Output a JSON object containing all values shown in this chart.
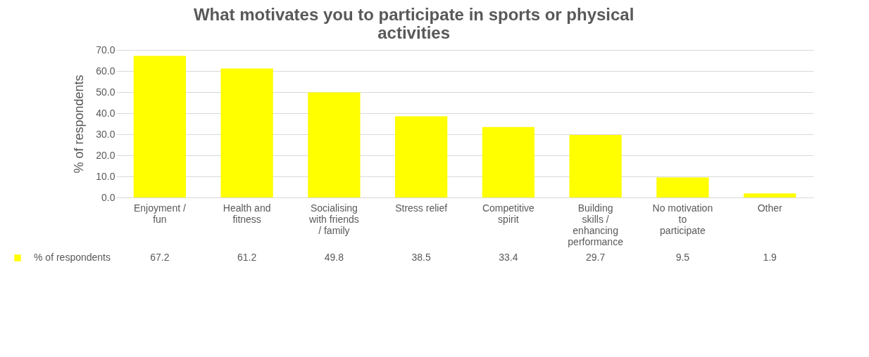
{
  "chart_data": {
    "type": "bar",
    "title": "What motivates you to participate in sports or physical activities",
    "ylabel": "% of respondents",
    "categories": [
      "Enjoyment / fun",
      "Health and fitness",
      "Socialising with friends / family",
      "Stress relief",
      "Competitive spirit",
      "Building skills / enhancing performance",
      "No motivation to participate",
      "Other"
    ],
    "series": [
      {
        "name": "% of respondents",
        "color": "#ffff00",
        "values": [
          67.2,
          61.2,
          49.8,
          38.5,
          33.4,
          29.7,
          9.5,
          1.9
        ]
      }
    ],
    "ylim": [
      0,
      70
    ],
    "yticks": [
      {
        "value": 0,
        "label": "0.0"
      },
      {
        "value": 10,
        "label": "10.0"
      },
      {
        "value": 20,
        "label": "20.0"
      },
      {
        "value": 30,
        "label": "30.0"
      },
      {
        "value": 40,
        "label": "40.0"
      },
      {
        "value": 50,
        "label": "50.0"
      },
      {
        "value": 60,
        "label": "60.0"
      },
      {
        "value": 70,
        "label": "70.0"
      }
    ],
    "grid": "y",
    "legend": "bottom left",
    "data_labels": true
  }
}
